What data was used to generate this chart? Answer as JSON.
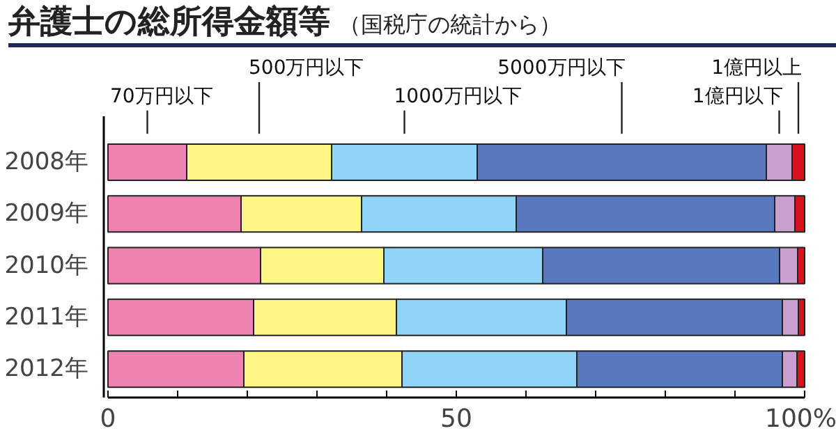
{
  "chart_data": {
    "type": "bar",
    "orientation": "horizontal",
    "stacked": true,
    "title": "弁護士の総所得金額等",
    "subtitle": "（国税庁の統計から）",
    "categories": [
      "2008年",
      "2009年",
      "2010年",
      "2011年",
      "2012年"
    ],
    "xlim": [
      0,
      100
    ],
    "xticks": [
      0,
      {
        "value": 10,
        "label": null
      },
      {
        "value": 20,
        "label": null
      },
      {
        "value": 30,
        "label": null
      },
      {
        "value": 40,
        "label": null
      },
      50,
      {
        "value": 60,
        "label": null
      },
      {
        "value": 70,
        "label": null
      },
      {
        "value": 80,
        "label": null
      },
      {
        "value": 90,
        "label": null
      },
      {
        "value": 100,
        "label": "100%"
      }
    ],
    "legend": "top",
    "grid": false,
    "series": [
      {
        "name": "70万円以下",
        "color": "#ee82b0",
        "values": [
          11.3,
          19.1,
          21.9,
          20.9,
          19.5
        ]
      },
      {
        "name": "500万円以下",
        "color": "#fff685",
        "values": [
          20.8,
          17.3,
          17.7,
          20.5,
          22.7
        ]
      },
      {
        "name": "1000万円以下",
        "color": "#8fd3f5",
        "values": [
          20.9,
          22.2,
          22.8,
          24.4,
          25.1
        ]
      },
      {
        "name": "5000万円以下",
        "color": "#5878bf",
        "values": [
          41.5,
          37.1,
          34.0,
          31.0,
          29.5
        ]
      },
      {
        "name": "1億円以下",
        "color": "#c9a0cf",
        "values": [
          3.7,
          2.9,
          2.6,
          2.3,
          2.1
        ]
      },
      {
        "name": "1億円以上",
        "color": "#d7141e",
        "values": [
          1.8,
          1.4,
          1.0,
          0.9,
          1.1
        ]
      }
    ]
  }
}
